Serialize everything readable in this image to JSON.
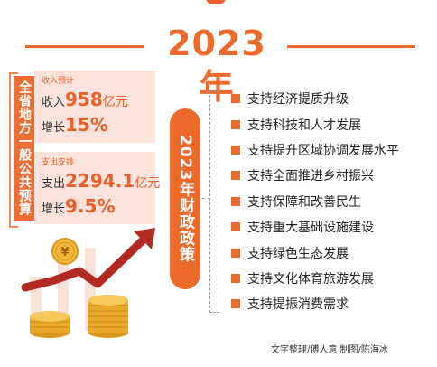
{
  "header": {
    "year_title": "2023年"
  },
  "budget": {
    "vertical_title": "全省地方一般公共预算",
    "revenue": {
      "tag": "收入预计",
      "label": "收入",
      "value": "958",
      "unit": "亿元",
      "growth_label": "增长",
      "growth": "15%"
    },
    "expenditure": {
      "tag": "支出安排",
      "label": "支出",
      "value": "2294.1",
      "unit": "亿元",
      "growth_label": "增长",
      "growth": "9.5%"
    }
  },
  "policy": {
    "title": "2023年财政政策",
    "items": [
      "支持经济提质升级",
      "支持科技和人才发展",
      "支持提升区域协调发展水平",
      "支持全面推进乡村振兴",
      "支持保障和改善民生",
      "支持重大基础设施建设",
      "支持绿色生态发展",
      "支持文化体育旅游发展",
      "支持提振消费需求"
    ]
  },
  "credit": "文字整理/傅人意  制图/陈海冰",
  "icons": {
    "coin_symbol": "¥"
  },
  "colors": {
    "accent": "#ec6a2b",
    "panel": "#fbe3dc",
    "gold": "#e9a928",
    "arrow": "#b32a22"
  }
}
